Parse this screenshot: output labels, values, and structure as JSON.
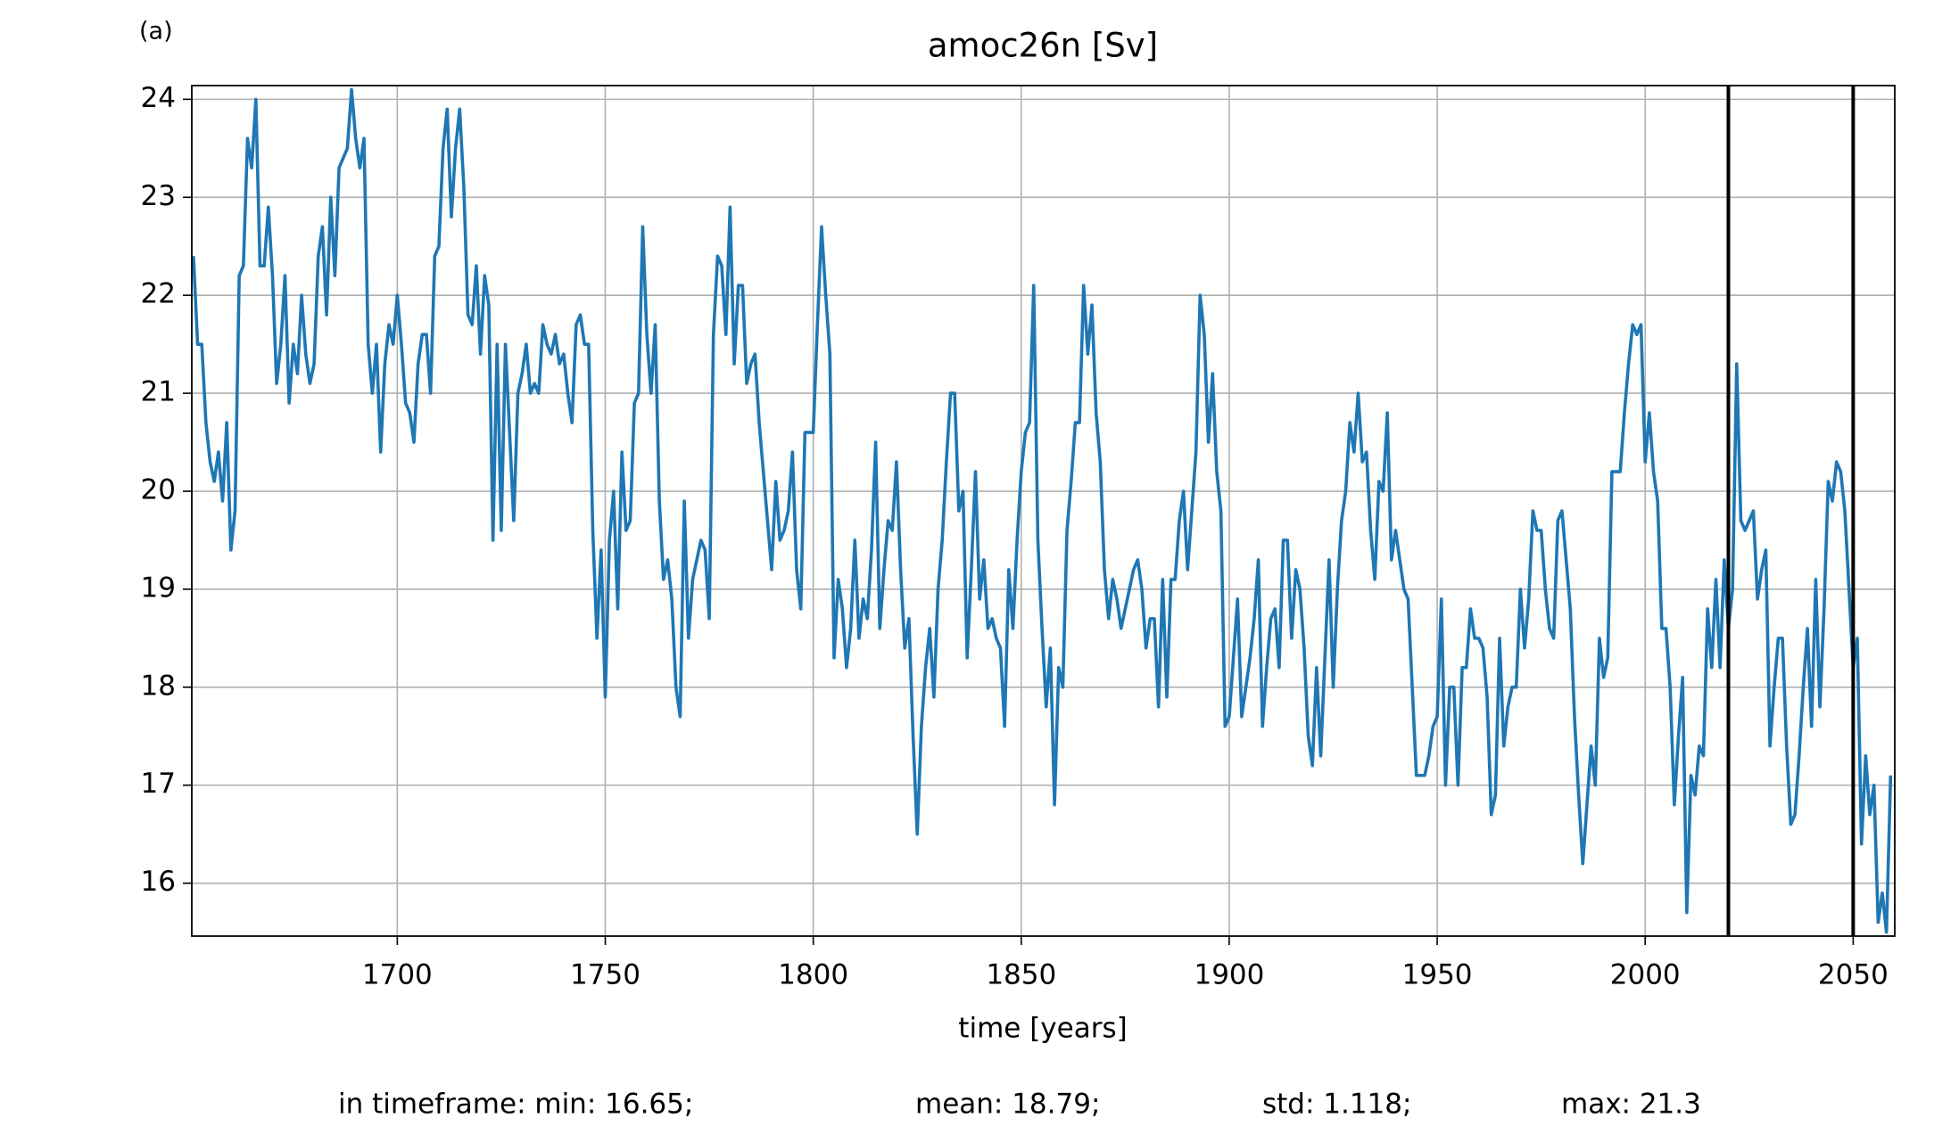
{
  "chart_data": {
    "type": "line",
    "panel_label": "(a)",
    "title": "amoc26n [Sv]",
    "xlabel": "time [years]",
    "stats": [
      "in timeframe: min: 16.65;",
      "mean: 18.79;",
      "std: 1.118;",
      "max: 21.3"
    ],
    "color": "#1f77b4",
    "grid": true,
    "xlim": [
      1650.6,
      2060
    ],
    "xticks": [
      1700,
      1750,
      1800,
      1850,
      1900,
      1950,
      2000,
      2050
    ],
    "ylim": [
      15.46,
      24.14
    ],
    "yticks": [
      16,
      17,
      18,
      19,
      20,
      21,
      22,
      23,
      24
    ],
    "vlines": {
      "x": [
        2020,
        2050
      ],
      "color": "#000000"
    },
    "x": [
      1651,
      1652,
      1653,
      1654,
      1655,
      1656,
      1657,
      1658,
      1659,
      1660,
      1661,
      1662,
      1663,
      1664,
      1665,
      1666,
      1667,
      1668,
      1669,
      1670,
      1671,
      1672,
      1673,
      1674,
      1675,
      1676,
      1677,
      1678,
      1679,
      1680,
      1681,
      1682,
      1683,
      1684,
      1685,
      1686,
      1687,
      1688,
      1689,
      1690,
      1691,
      1692,
      1693,
      1694,
      1695,
      1696,
      1697,
      1698,
      1699,
      1700,
      1701,
      1702,
      1703,
      1704,
      1705,
      1706,
      1707,
      1708,
      1709,
      1710,
      1711,
      1712,
      1713,
      1714,
      1715,
      1716,
      1717,
      1718,
      1719,
      1720,
      1721,
      1722,
      1723,
      1724,
      1725,
      1726,
      1727,
      1728,
      1729,
      1730,
      1731,
      1732,
      1733,
      1734,
      1735,
      1736,
      1737,
      1738,
      1739,
      1740,
      1741,
      1742,
      1743,
      1744,
      1745,
      1746,
      1747,
      1748,
      1749,
      1750,
      1751,
      1752,
      1753,
      1754,
      1755,
      1756,
      1757,
      1758,
      1759,
      1760,
      1761,
      1762,
      1763,
      1764,
      1765,
      1766,
      1767,
      1768,
      1769,
      1770,
      1771,
      1772,
      1773,
      1774,
      1775,
      1776,
      1777,
      1778,
      1779,
      1780,
      1781,
      1782,
      1783,
      1784,
      1785,
      1786,
      1787,
      1788,
      1789,
      1790,
      1791,
      1792,
      1793,
      1794,
      1795,
      1796,
      1797,
      1798,
      1799,
      1800,
      1801,
      1802,
      1803,
      1804,
      1805,
      1806,
      1807,
      1808,
      1809,
      1810,
      1811,
      1812,
      1813,
      1814,
      1815,
      1816,
      1817,
      1818,
      1819,
      1820,
      1821,
      1822,
      1823,
      1824,
      1825,
      1826,
      1827,
      1828,
      1829,
      1830,
      1831,
      1832,
      1833,
      1834,
      1835,
      1836,
      1837,
      1838,
      1839,
      1840,
      1841,
      1842,
      1843,
      1844,
      1845,
      1846,
      1847,
      1848,
      1849,
      1850,
      1851,
      1852,
      1853,
      1854,
      1855,
      1856,
      1857,
      1858,
      1859,
      1860,
      1861,
      1862,
      1863,
      1864,
      1865,
      1866,
      1867,
      1868,
      1869,
      1870,
      1871,
      1872,
      1873,
      1874,
      1875,
      1876,
      1877,
      1878,
      1879,
      1880,
      1881,
      1882,
      1883,
      1884,
      1885,
      1886,
      1887,
      1888,
      1889,
      1890,
      1891,
      1892,
      1893,
      1894,
      1895,
      1896,
      1897,
      1898,
      1899,
      1900,
      1901,
      1902,
      1903,
      1904,
      1905,
      1906,
      1907,
      1908,
      1909,
      1910,
      1911,
      1912,
      1913,
      1914,
      1915,
      1916,
      1917,
      1918,
      1919,
      1920,
      1921,
      1922,
      1923,
      1924,
      1925,
      1926,
      1927,
      1928,
      1929,
      1930,
      1931,
      1932,
      1933,
      1934,
      1935,
      1936,
      1937,
      1938,
      1939,
      1940,
      1941,
      1942,
      1943,
      1944,
      1945,
      1946,
      1947,
      1948,
      1949,
      1950,
      1951,
      1952,
      1953,
      1954,
      1955,
      1956,
      1957,
      1958,
      1959,
      1960,
      1961,
      1962,
      1963,
      1964,
      1965,
      1966,
      1967,
      1968,
      1969,
      1970,
      1971,
      1972,
      1973,
      1974,
      1975,
      1976,
      1977,
      1978,
      1979,
      1980,
      1981,
      1982,
      1983,
      1984,
      1985,
      1986,
      1987,
      1988,
      1989,
      1990,
      1991,
      1992,
      1993,
      1994,
      1995,
      1996,
      1997,
      1998,
      1999,
      2000,
      2001,
      2002,
      2003,
      2004,
      2005,
      2006,
      2007,
      2008,
      2009,
      2010,
      2011,
      2012,
      2013,
      2014,
      2015,
      2016,
      2017,
      2018,
      2019,
      2020,
      2021,
      2022,
      2023,
      2024,
      2025,
      2026,
      2027,
      2028,
      2029,
      2030,
      2031,
      2032,
      2033,
      2034,
      2035,
      2036,
      2037,
      2038,
      2039,
      2040,
      2041,
      2042,
      2043,
      2044,
      2045,
      2046,
      2047,
      2048,
      2049,
      2050,
      2051,
      2052,
      2053,
      2054,
      2055,
      2056,
      2057,
      2058,
      2059
    ],
    "values": [
      22.4,
      21.5,
      21.5,
      20.7,
      20.3,
      20.1,
      20.4,
      19.9,
      20.7,
      19.4,
      19.8,
      22.2,
      22.3,
      23.6,
      23.3,
      24.0,
      22.3,
      22.3,
      22.9,
      22.2,
      21.1,
      21.5,
      22.2,
      20.9,
      21.5,
      21.2,
      22.0,
      21.4,
      21.1,
      21.3,
      22.4,
      22.7,
      21.8,
      23.0,
      22.2,
      23.3,
      23.4,
      23.5,
      24.1,
      23.6,
      23.3,
      23.6,
      21.5,
      21.0,
      21.5,
      20.4,
      21.3,
      21.7,
      21.5,
      22.0,
      21.5,
      20.9,
      20.8,
      20.5,
      21.3,
      21.6,
      21.6,
      21.0,
      22.4,
      22.5,
      23.5,
      23.9,
      22.8,
      23.5,
      23.9,
      23.1,
      21.8,
      21.7,
      22.3,
      21.4,
      22.2,
      21.9,
      19.5,
      21.5,
      19.6,
      21.5,
      20.6,
      19.7,
      21.0,
      21.2,
      21.5,
      21.0,
      21.1,
      21.0,
      21.7,
      21.5,
      21.4,
      21.6,
      21.3,
      21.4,
      21.0,
      20.7,
      21.7,
      21.8,
      21.5,
      21.5,
      19.6,
      18.5,
      19.4,
      17.9,
      19.5,
      20.0,
      18.8,
      20.4,
      19.6,
      19.7,
      20.9,
      21.0,
      22.7,
      21.6,
      21.0,
      21.7,
      19.9,
      19.1,
      19.3,
      18.9,
      18.0,
      17.7,
      19.9,
      18.5,
      19.1,
      19.3,
      19.5,
      19.4,
      18.7,
      21.6,
      22.4,
      22.3,
      21.6,
      22.9,
      21.3,
      22.1,
      22.1,
      21.1,
      21.3,
      21.4,
      20.7,
      20.2,
      19.7,
      19.2,
      20.1,
      19.5,
      19.6,
      19.8,
      20.4,
      19.2,
      18.8,
      20.6,
      20.6,
      20.6,
      21.7,
      22.7,
      22.0,
      21.4,
      18.3,
      19.1,
      18.8,
      18.2,
      18.6,
      19.5,
      18.5,
      18.9,
      18.7,
      19.4,
      20.5,
      18.6,
      19.2,
      19.7,
      19.6,
      20.3,
      19.2,
      18.4,
      18.7,
      17.5,
      16.5,
      17.6,
      18.2,
      18.6,
      17.9,
      19.0,
      19.5,
      20.3,
      21.0,
      21.0,
      19.8,
      20.0,
      18.3,
      19.2,
      20.2,
      18.9,
      19.3,
      18.6,
      18.7,
      18.5,
      18.4,
      17.6,
      19.2,
      18.6,
      19.5,
      20.2,
      20.6,
      20.7,
      22.1,
      19.5,
      18.6,
      17.8,
      18.4,
      16.8,
      18.2,
      18.0,
      19.6,
      20.1,
      20.7,
      20.7,
      22.1,
      21.4,
      21.9,
      20.8,
      20.3,
      19.2,
      18.7,
      19.1,
      18.9,
      18.6,
      18.8,
      19.0,
      19.2,
      19.3,
      19.0,
      18.4,
      18.7,
      18.7,
      17.8,
      19.1,
      17.9,
      19.1,
      19.1,
      19.7,
      20.0,
      19.2,
      19.8,
      20.4,
      22.0,
      21.6,
      20.5,
      21.2,
      20.2,
      19.8,
      17.6,
      17.7,
      18.3,
      18.9,
      17.7,
      18.0,
      18.3,
      18.7,
      19.3,
      17.6,
      18.2,
      18.7,
      18.8,
      18.2,
      19.5,
      19.5,
      18.5,
      19.2,
      19.0,
      18.4,
      17.5,
      17.2,
      18.2,
      17.3,
      18.3,
      19.3,
      18.0,
      19.0,
      19.7,
      20.0,
      20.7,
      20.4,
      21.0,
      20.3,
      20.4,
      19.6,
      19.1,
      20.1,
      20.0,
      20.8,
      19.3,
      19.6,
      19.3,
      19.0,
      18.9,
      18.0,
      17.1,
      17.1,
      17.1,
      17.3,
      17.6,
      17.7,
      18.9,
      17.0,
      18.0,
      18.0,
      17.0,
      18.2,
      18.2,
      18.8,
      18.5,
      18.5,
      18.4,
      17.9,
      16.7,
      16.9,
      18.5,
      17.4,
      17.8,
      18.0,
      18.0,
      19.0,
      18.4,
      18.9,
      19.8,
      19.6,
      19.6,
      19.0,
      18.6,
      18.5,
      19.7,
      19.8,
      19.3,
      18.8,
      17.7,
      16.9,
      16.2,
      16.8,
      17.4,
      17.0,
      18.5,
      18.1,
      18.3,
      20.2,
      20.2,
      20.2,
      20.8,
      21.3,
      21.7,
      21.6,
      21.7,
      20.3,
      20.8,
      20.2,
      19.9,
      18.6,
      18.6,
      18.0,
      16.8,
      17.5,
      18.1,
      15.7,
      17.1,
      16.9,
      17.4,
      17.3,
      18.8,
      18.2,
      19.1,
      18.2,
      19.3,
      18.6,
      19.0,
      21.3,
      19.7,
      19.6,
      19.7,
      19.8,
      18.9,
      19.2,
      19.4,
      17.4,
      18.0,
      18.5,
      18.5,
      17.4,
      16.6,
      16.7,
      17.3,
      18.0,
      18.6,
      17.6,
      19.1,
      17.8,
      18.8,
      20.1,
      19.9,
      20.3,
      20.2,
      19.8,
      19.0,
      18.2,
      18.5,
      16.4,
      17.3,
      16.7,
      17.0,
      15.6,
      15.9,
      15.5,
      17.1
    ]
  }
}
